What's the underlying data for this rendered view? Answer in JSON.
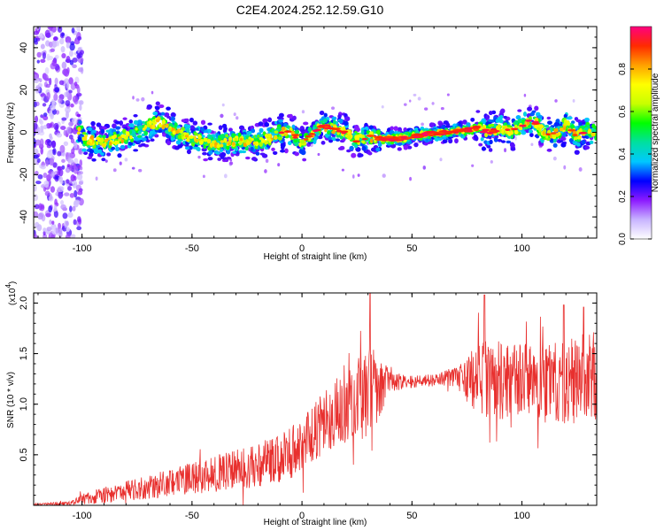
{
  "title": "C2E4.2024.252.12.59.G10",
  "chart_data": [
    {
      "type": "heatmap",
      "xlabel": "Height of straight line (km)",
      "ylabel": "Frequency (Hz)",
      "xlim": [
        -122,
        134
      ],
      "ylim": [
        -50,
        50
      ],
      "xticks": [
        -100,
        -50,
        0,
        50,
        100
      ],
      "yticks": [
        -40,
        -20,
        0,
        20,
        40
      ],
      "grid": false,
      "colorbar": {
        "label": "Normalized spectral amplitude",
        "range": [
          0.0,
          1.0
        ],
        "ticks": [
          "0.0",
          "0.2",
          "0.4",
          "0.6",
          "0.8"
        ],
        "colors": [
          "#ffffff",
          "#c8b4ff",
          "#8c1aff",
          "#0000ff",
          "#00c8ff",
          "#00e0a0",
          "#00ff00",
          "#c8ff00",
          "#ffff00",
          "#ffa000",
          "#ff2a00",
          "#ff0080"
        ]
      },
      "ridge": {
        "x": [
          -100,
          -90,
          -80,
          -70,
          -65,
          -60,
          -50,
          -40,
          -30,
          -20,
          -10,
          -5,
          0,
          5,
          10,
          20,
          25,
          30,
          35,
          45,
          55,
          65,
          75,
          80,
          85,
          90,
          95,
          100,
          105,
          110,
          115,
          120,
          125,
          130,
          134
        ],
        "y": [
          -3,
          -5,
          -2,
          3,
          5,
          2,
          -3,
          -5,
          -4,
          -5,
          0,
          0,
          -5,
          0,
          3,
          0,
          -4,
          -2,
          -3,
          -3,
          -1,
          0,
          1,
          2,
          0,
          2,
          0,
          3,
          6,
          0,
          -1,
          4,
          -2,
          1,
          0
        ]
      },
      "noise_region": {
        "x": [
          -122,
          -100
        ],
        "y": [
          -50,
          50
        ]
      }
    },
    {
      "type": "line",
      "xlabel": "Height of straight line (km)",
      "ylabel": "SNR (10 * v/v)",
      "y_multiplier": "(x10",
      "y_multiplier_exp": "4",
      "xlim": [
        -122,
        134
      ],
      "ylim": [
        0,
        2.1
      ],
      "xticks": [
        -100,
        -50,
        0,
        50,
        100
      ],
      "yticks": [
        "0.5",
        "1.0",
        "1.5",
        "2.0"
      ],
      "grid": false,
      "series_color": "#e8302e",
      "envelope": {
        "x": [
          -122,
          -105,
          -100,
          -90,
          -80,
          -70,
          -60,
          -50,
          -40,
          -30,
          -20,
          -10,
          0,
          10,
          20,
          30,
          35,
          40,
          50,
          60,
          70,
          80,
          90,
          100,
          110,
          120,
          130,
          134
        ],
        "mean": [
          0.01,
          0.02,
          0.06,
          0.1,
          0.14,
          0.18,
          0.22,
          0.27,
          0.31,
          0.35,
          0.4,
          0.46,
          0.58,
          0.82,
          1.0,
          1.1,
          1.2,
          1.22,
          1.22,
          1.24,
          1.27,
          1.24,
          1.22,
          1.24,
          1.24,
          1.2,
          1.28,
          1.25
        ],
        "spread": [
          0.01,
          0.02,
          0.05,
          0.08,
          0.1,
          0.12,
          0.14,
          0.16,
          0.18,
          0.2,
          0.22,
          0.24,
          0.28,
          0.32,
          0.35,
          0.45,
          0.4,
          0.1,
          0.06,
          0.06,
          0.1,
          0.4,
          0.38,
          0.35,
          0.38,
          0.4,
          0.45,
          0.45
        ]
      },
      "peaks": [
        {
          "x": 31,
          "y": 2.1
        },
        {
          "x": 83,
          "y": 2.08
        },
        {
          "x": 119,
          "y": 1.98
        },
        {
          "x": 128,
          "y": 1.96
        }
      ]
    }
  ]
}
